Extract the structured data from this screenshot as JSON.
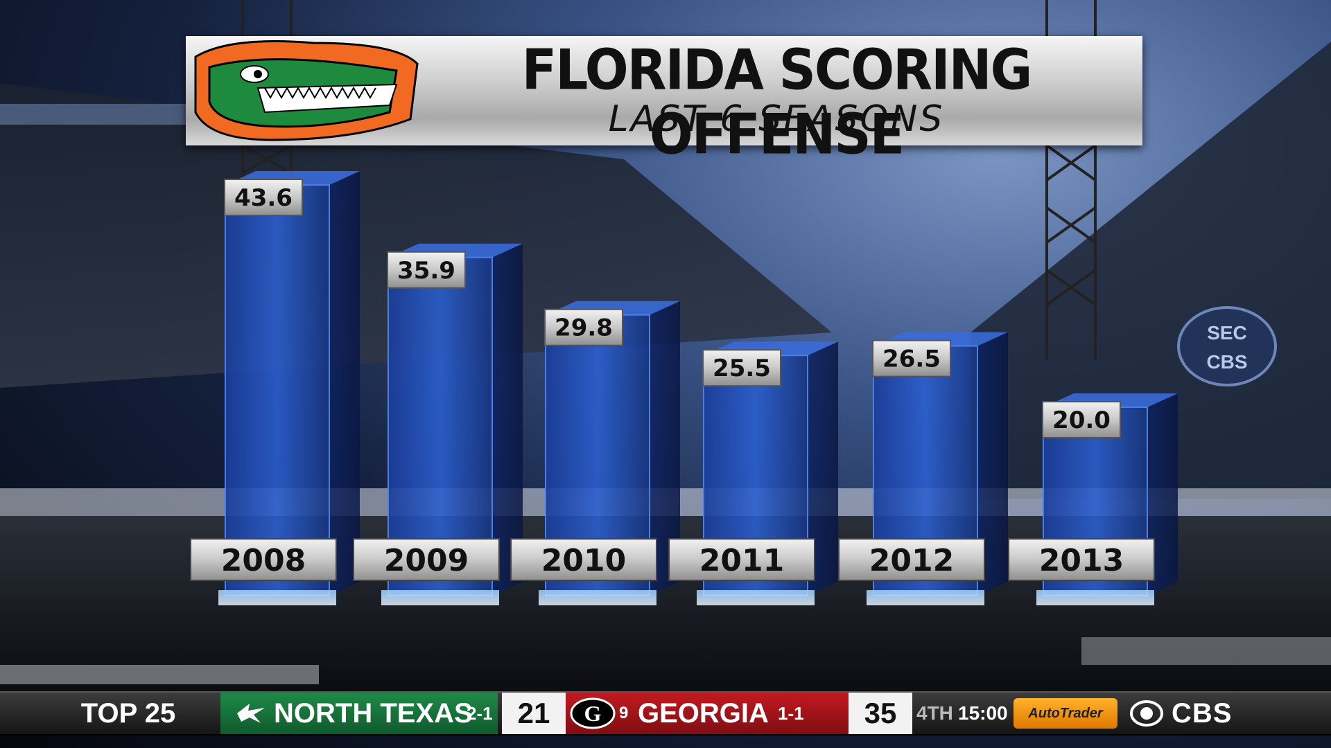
{
  "chart_data": {
    "type": "bar",
    "title": "FLORIDA SCORING OFFENSE",
    "subtitle": "LAST 6 SEASONS",
    "categories": [
      "2008",
      "2009",
      "2010",
      "2011",
      "2012",
      "2013"
    ],
    "values": [
      43.6,
      35.9,
      29.8,
      25.5,
      26.5,
      20.0
    ],
    "value_labels": [
      "43.6",
      "35.9",
      "29.8",
      "25.5",
      "26.5",
      "20.0"
    ],
    "xlabel": "",
    "ylabel": "",
    "ylim": [
      0,
      45
    ],
    "grid": false,
    "bar_color": "#1f4fb8"
  },
  "ticker": {
    "label": "TOP 25",
    "team1": {
      "name": "NORTH TEXAS",
      "record": "2-1",
      "score": "21",
      "color": "#1f8a48"
    },
    "team2": {
      "rank": "9",
      "name": "GEORGIA",
      "record": "1-1",
      "score": "35",
      "color": "#c31a21"
    },
    "period": "4TH",
    "clock": "15:00",
    "sponsor": "AutoTrader",
    "network": "CBS",
    "network_icon": "cbs-eye-icon"
  },
  "logos": {
    "team_logo": "gator-head-icon",
    "venue_sign": [
      "SEC",
      "CBS"
    ]
  }
}
